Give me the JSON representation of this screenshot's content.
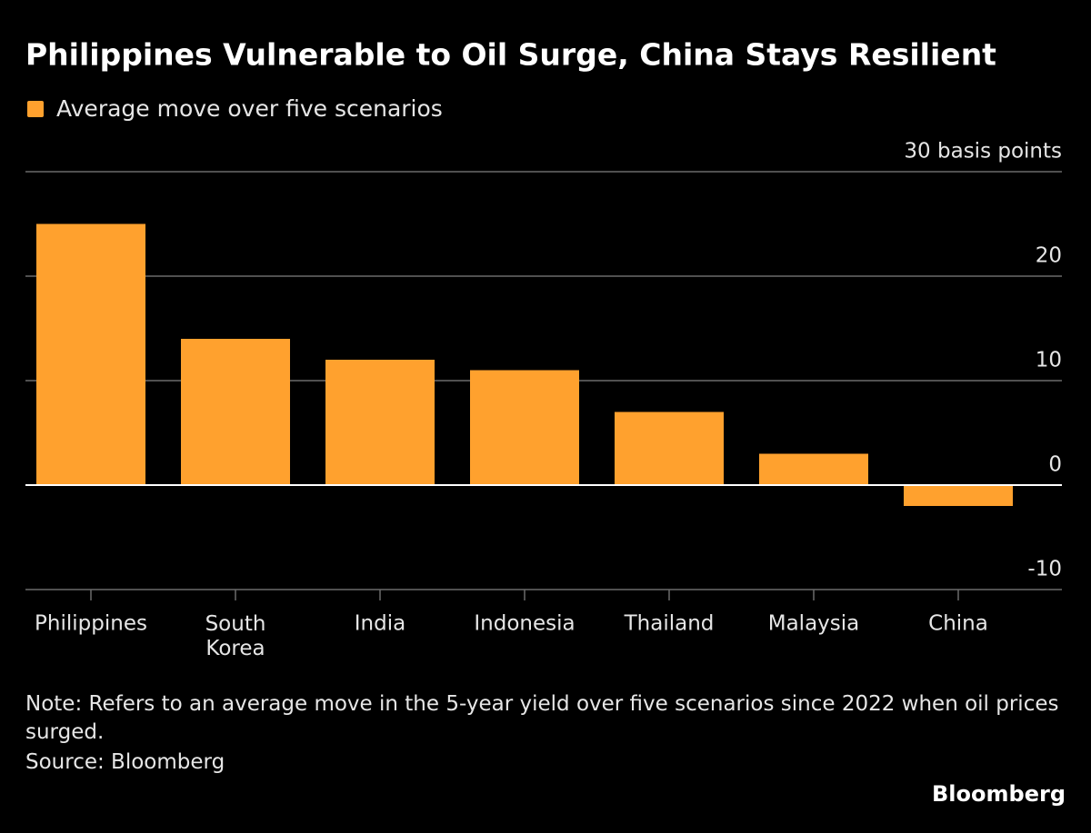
{
  "chart_data": {
    "type": "bar",
    "title": "Philippines Vulnerable to Oil Surge, China Stays Resilient",
    "legend": "Average move over five scenarios",
    "categories": [
      "Philippines",
      "South Korea",
      "India",
      "Indonesia",
      "Thailand",
      "Malaysia",
      "China"
    ],
    "values": [
      25,
      14,
      12,
      11,
      7,
      3,
      -2
    ],
    "color": "#ffa12e",
    "ylim": [
      -10,
      30
    ],
    "yticks": [
      -10,
      0,
      10,
      20,
      {
        "value": 30,
        "label": "30 basis points"
      }
    ],
    "grid": true,
    "note": "Note: Refers to an average move in the 5-year yield over five scenarios since 2022 when oil prices surged.",
    "source": "Source: Bloomberg",
    "brand": "Bloomberg"
  }
}
